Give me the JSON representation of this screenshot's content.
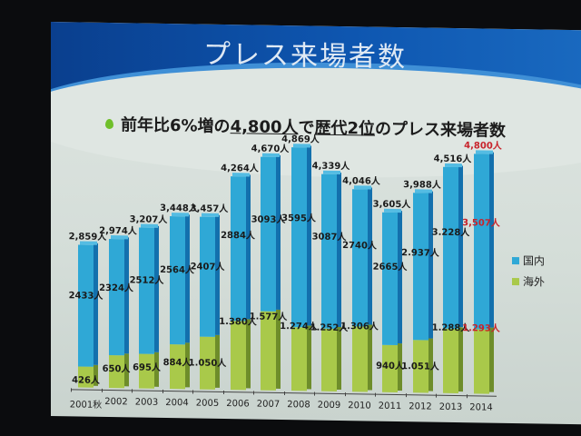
{
  "slide": {
    "title": "プレス来場者数",
    "subtitle_parts": [
      "前年比6%増の",
      "4,800人",
      "で",
      "歴代2位",
      "のプレス来場者数"
    ]
  },
  "legend": {
    "domestic": "国内",
    "overseas": "海外"
  },
  "colors": {
    "domestic": "#2fa8d6",
    "overseas": "#a9c94a",
    "highlight": "#c8232b",
    "header": "#0e56b0"
  },
  "chart_data": {
    "type": "bar",
    "stacked": true,
    "title": "プレス来場者数",
    "subtitle": "前年比6%増の4,800人で歴代2位のプレス来場者数",
    "categories": [
      "2001秋",
      "2002",
      "2003",
      "2004",
      "2005",
      "2006",
      "2007",
      "2008",
      "2009",
      "2010",
      "2011",
      "2012",
      "2013",
      "2014"
    ],
    "series": [
      {
        "name": "海外",
        "values": [
          426,
          650,
          695,
          884,
          1050,
          1380,
          1577,
          1274,
          1252,
          1306,
          940,
          1051,
          1288,
          1293
        ]
      },
      {
        "name": "国内",
        "values": [
          2433,
          2324,
          2512,
          2564,
          2407,
          2884,
          3093,
          3595,
          3087,
          2740,
          2665,
          2937,
          3228,
          3507
        ]
      }
    ],
    "totals": [
      2859,
      2974,
      3207,
      3448,
      3457,
      4264,
      4670,
      4869,
      4339,
      4046,
      3605,
      3988,
      4516,
      4800
    ],
    "total_labels": [
      "2,859人",
      "2,974人",
      "3,207人",
      "3,448人",
      "3,457人",
      "4,264人",
      "4,670人",
      "4,869人",
      "4,339人",
      "4,046人",
      "3,605人",
      "3,988人",
      "4,516人",
      "4,800人"
    ],
    "domestic_labels": [
      "2433人",
      "2324人",
      "2512人",
      "2564人",
      "2407人",
      "2884人",
      "3093人",
      "3595人",
      "3087人",
      "2740人",
      "2665人",
      "2.937人",
      "3.228人",
      "3,507人"
    ],
    "overseas_labels": [
      "426人",
      "650人",
      "695人",
      "884人",
      "1.050人",
      "1.380人",
      "1.577人",
      "1.274人",
      "1.252人",
      "1.306人",
      "940人",
      "1.051人",
      "1.288人",
      "1.293人"
    ],
    "highlight_index": 13,
    "legend_position": "right",
    "grid": false,
    "xlabel": "",
    "ylabel": ""
  }
}
